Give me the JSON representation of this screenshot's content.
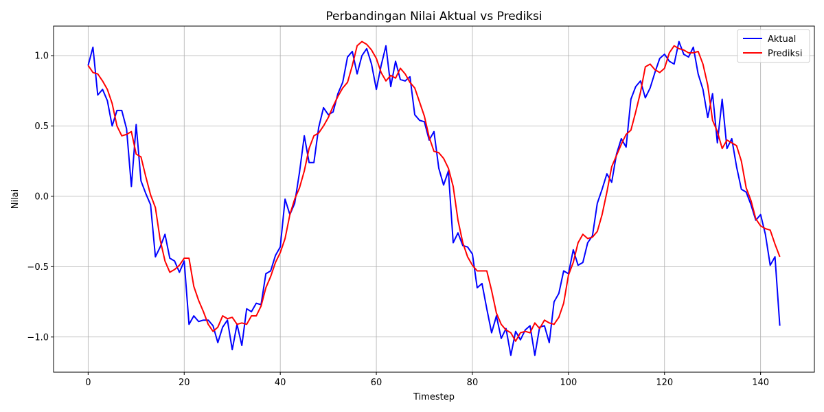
{
  "chart_data": {
    "type": "line",
    "title": "Perbandingan Nilai Aktual vs Prediksi",
    "xlabel": "Timestep",
    "ylabel": "Nilai",
    "xlim": [
      -7.2,
      151.2
    ],
    "ylim": [
      -1.25,
      1.21
    ],
    "xticks": [
      0,
      20,
      40,
      60,
      80,
      100,
      120,
      140
    ],
    "xtick_labels": [
      "0",
      "20",
      "40",
      "60",
      "80",
      "100",
      "120",
      "140"
    ],
    "yticks": [
      -1.0,
      -0.5,
      0.0,
      0.5,
      1.0
    ],
    "ytick_labels": [
      "−1.0",
      "−0.5",
      "0.0",
      "0.5",
      "1.0"
    ],
    "grid": true,
    "legend_position": "top-right",
    "series": [
      {
        "name": "Aktual",
        "color": "#0000ff",
        "values": [
          0.93,
          1.06,
          0.72,
          0.76,
          0.68,
          0.5,
          0.61,
          0.61,
          0.48,
          0.07,
          0.51,
          0.11,
          0.02,
          -0.06,
          -0.43,
          -0.36,
          -0.27,
          -0.44,
          -0.46,
          -0.54,
          -0.46,
          -0.91,
          -0.85,
          -0.89,
          -0.88,
          -0.88,
          -0.92,
          -1.04,
          -0.93,
          -0.88,
          -1.09,
          -0.91,
          -1.06,
          -0.8,
          -0.82,
          -0.76,
          -0.77,
          -0.55,
          -0.53,
          -0.42,
          -0.36,
          -0.02,
          -0.13,
          -0.05,
          0.17,
          0.43,
          0.24,
          0.24,
          0.49,
          0.63,
          0.58,
          0.6,
          0.73,
          0.81,
          0.99,
          1.03,
          0.87,
          1.0,
          1.05,
          0.94,
          0.76,
          0.93,
          1.07,
          0.78,
          0.96,
          0.83,
          0.82,
          0.85,
          0.58,
          0.54,
          0.53,
          0.4,
          0.46,
          0.2,
          0.08,
          0.18,
          -0.33,
          -0.26,
          -0.35,
          -0.36,
          -0.41,
          -0.65,
          -0.62,
          -0.8,
          -0.97,
          -0.85,
          -1.01,
          -0.94,
          -1.13,
          -0.96,
          -1.02,
          -0.95,
          -0.92,
          -1.13,
          -0.93,
          -0.92,
          -1.04,
          -0.75,
          -0.69,
          -0.53,
          -0.55,
          -0.38,
          -0.49,
          -0.47,
          -0.33,
          -0.28,
          -0.05,
          0.05,
          0.16,
          0.1,
          0.3,
          0.41,
          0.35,
          0.69,
          0.78,
          0.82,
          0.7,
          0.77,
          0.88,
          0.98,
          1.01,
          0.96,
          0.94,
          1.1,
          1.01,
          0.99,
          1.06,
          0.87,
          0.76,
          0.56,
          0.73,
          0.38,
          0.69,
          0.34,
          0.41,
          0.21,
          0.05,
          0.03,
          -0.06,
          -0.17,
          -0.13,
          -0.27,
          -0.49,
          -0.43,
          -0.92
        ]
      },
      {
        "name": "Prediksi",
        "color": "#ff0000",
        "values": [
          0.93,
          0.88,
          0.87,
          0.82,
          0.76,
          0.66,
          0.5,
          0.43,
          0.44,
          0.46,
          0.3,
          0.28,
          0.14,
          0.01,
          -0.08,
          -0.31,
          -0.46,
          -0.54,
          -0.52,
          -0.49,
          -0.44,
          -0.44,
          -0.64,
          -0.74,
          -0.82,
          -0.91,
          -0.96,
          -0.93,
          -0.85,
          -0.87,
          -0.86,
          -0.91,
          -0.9,
          -0.91,
          -0.85,
          -0.85,
          -0.78,
          -0.65,
          -0.57,
          -0.47,
          -0.4,
          -0.3,
          -0.13,
          -0.02,
          0.06,
          0.18,
          0.34,
          0.43,
          0.45,
          0.5,
          0.56,
          0.64,
          0.71,
          0.77,
          0.81,
          0.93,
          1.07,
          1.1,
          1.08,
          1.04,
          0.98,
          0.88,
          0.82,
          0.86,
          0.84,
          0.91,
          0.87,
          0.81,
          0.77,
          0.67,
          0.57,
          0.42,
          0.32,
          0.31,
          0.27,
          0.2,
          0.07,
          -0.17,
          -0.33,
          -0.43,
          -0.49,
          -0.53,
          -0.53,
          -0.53,
          -0.67,
          -0.83,
          -0.91,
          -0.95,
          -0.97,
          -1.03,
          -0.97,
          -0.96,
          -0.97,
          -0.9,
          -0.94,
          -0.88,
          -0.9,
          -0.91,
          -0.86,
          -0.76,
          -0.56,
          -0.47,
          -0.33,
          -0.27,
          -0.3,
          -0.29,
          -0.25,
          -0.13,
          0.03,
          0.21,
          0.29,
          0.37,
          0.44,
          0.47,
          0.6,
          0.74,
          0.92,
          0.94,
          0.9,
          0.88,
          0.91,
          1.02,
          1.07,
          1.05,
          1.04,
          1.02,
          1.02,
          1.03,
          0.94,
          0.79,
          0.54,
          0.46,
          0.34,
          0.4,
          0.38,
          0.36,
          0.25,
          0.06,
          -0.03,
          -0.16,
          -0.21,
          -0.23,
          -0.24,
          -0.34,
          -0.43
        ]
      }
    ]
  }
}
